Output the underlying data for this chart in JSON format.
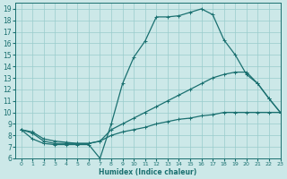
{
  "xlabel": "Humidex (Indice chaleur)",
  "bg_color": "#cce8e8",
  "grid_color": "#99cccc",
  "line_color": "#1a7070",
  "xlim": [
    -0.5,
    23
  ],
  "ylim": [
    6,
    19.5
  ],
  "xticks": [
    0,
    1,
    2,
    3,
    4,
    5,
    6,
    7,
    8,
    9,
    10,
    11,
    12,
    13,
    14,
    15,
    16,
    17,
    18,
    19,
    20,
    21,
    22,
    23
  ],
  "yticks": [
    6,
    7,
    8,
    9,
    10,
    11,
    12,
    13,
    14,
    15,
    16,
    17,
    18,
    19
  ],
  "line1_x": [
    0,
    1,
    2,
    3,
    4,
    5,
    6,
    7,
    8,
    9,
    10,
    11,
    12,
    13,
    14,
    15,
    16,
    17,
    18,
    19,
    20,
    21,
    22,
    23
  ],
  "line1_y": [
    8.5,
    7.7,
    7.3,
    7.2,
    7.2,
    7.2,
    7.2,
    6.0,
    9.0,
    12.5,
    14.8,
    16.2,
    18.3,
    18.3,
    18.4,
    18.7,
    19.0,
    18.5,
    16.3,
    15.0,
    13.3,
    12.5,
    11.2,
    10.0
  ],
  "line2_x": [
    0,
    1,
    2,
    3,
    4,
    5,
    6,
    7,
    8,
    9,
    10,
    11,
    12,
    13,
    14,
    15,
    16,
    17,
    18,
    19,
    20,
    21,
    22,
    23
  ],
  "line2_y": [
    8.5,
    8.3,
    7.7,
    7.5,
    7.4,
    7.3,
    7.3,
    7.5,
    8.5,
    9.0,
    9.5,
    10.0,
    10.5,
    11.0,
    11.5,
    12.0,
    12.5,
    13.0,
    13.3,
    13.5,
    13.5,
    12.5,
    11.2,
    10.0
  ],
  "line3_x": [
    0,
    1,
    2,
    3,
    4,
    5,
    6,
    7,
    8,
    9,
    10,
    11,
    12,
    13,
    14,
    15,
    16,
    17,
    18,
    19,
    20,
    21,
    22,
    23
  ],
  "line3_y": [
    8.5,
    8.2,
    7.5,
    7.3,
    7.3,
    7.3,
    7.3,
    7.5,
    8.0,
    8.3,
    8.5,
    8.7,
    9.0,
    9.2,
    9.4,
    9.5,
    9.7,
    9.8,
    10.0,
    10.0,
    10.0,
    10.0,
    10.0,
    10.0
  ]
}
